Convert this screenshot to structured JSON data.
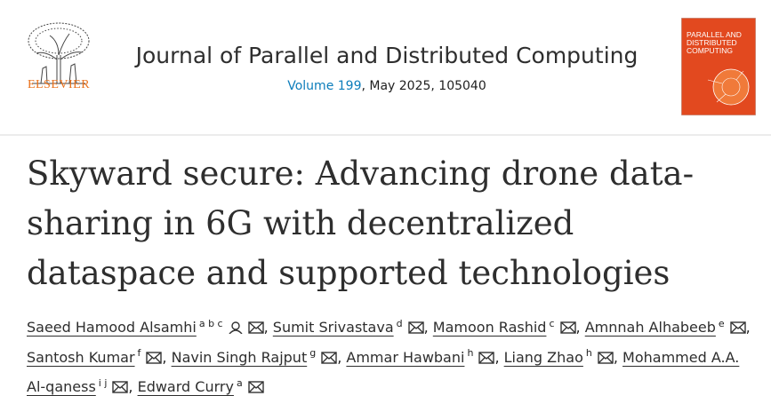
{
  "header": {
    "publisher": "ELSEVIER",
    "journal": "Journal of Parallel and Distributed Computing",
    "volume": "Volume 199",
    "issue": ", May 2025, 105040",
    "cover": {
      "lines": [
        "PARALLEL AND",
        "DISTRIBUTED",
        "COMPUTING"
      ]
    }
  },
  "article": {
    "title": "Skyward secure: Advancing drone data-sharing in 6G with decentralized dataspace and supported technologies"
  },
  "authors": {
    "separator": ",",
    "list": [
      {
        "name": "Saeed Hamood Alsamhi",
        "affiliations": "a b c",
        "corresponding": true
      },
      {
        "name": "Sumit Srivastava",
        "affiliations": "d"
      },
      {
        "name": "Mamoon Rashid",
        "affiliations": "c"
      },
      {
        "name": "Amnnah Alhabeeb",
        "affiliations": "e"
      },
      {
        "name": "Santosh Kumar",
        "affiliations": "f"
      },
      {
        "name": "Navin Singh Rajput",
        "affiliations": "g"
      },
      {
        "name": "Ammar Hawbani",
        "affiliations": "h"
      },
      {
        "name": "Liang Zhao",
        "affiliations": "h"
      },
      {
        "name": "Mohammed A.A. Al-qaness",
        "affiliations": "i j"
      },
      {
        "name": "Edward Curry",
        "affiliations": "a"
      }
    ]
  }
}
